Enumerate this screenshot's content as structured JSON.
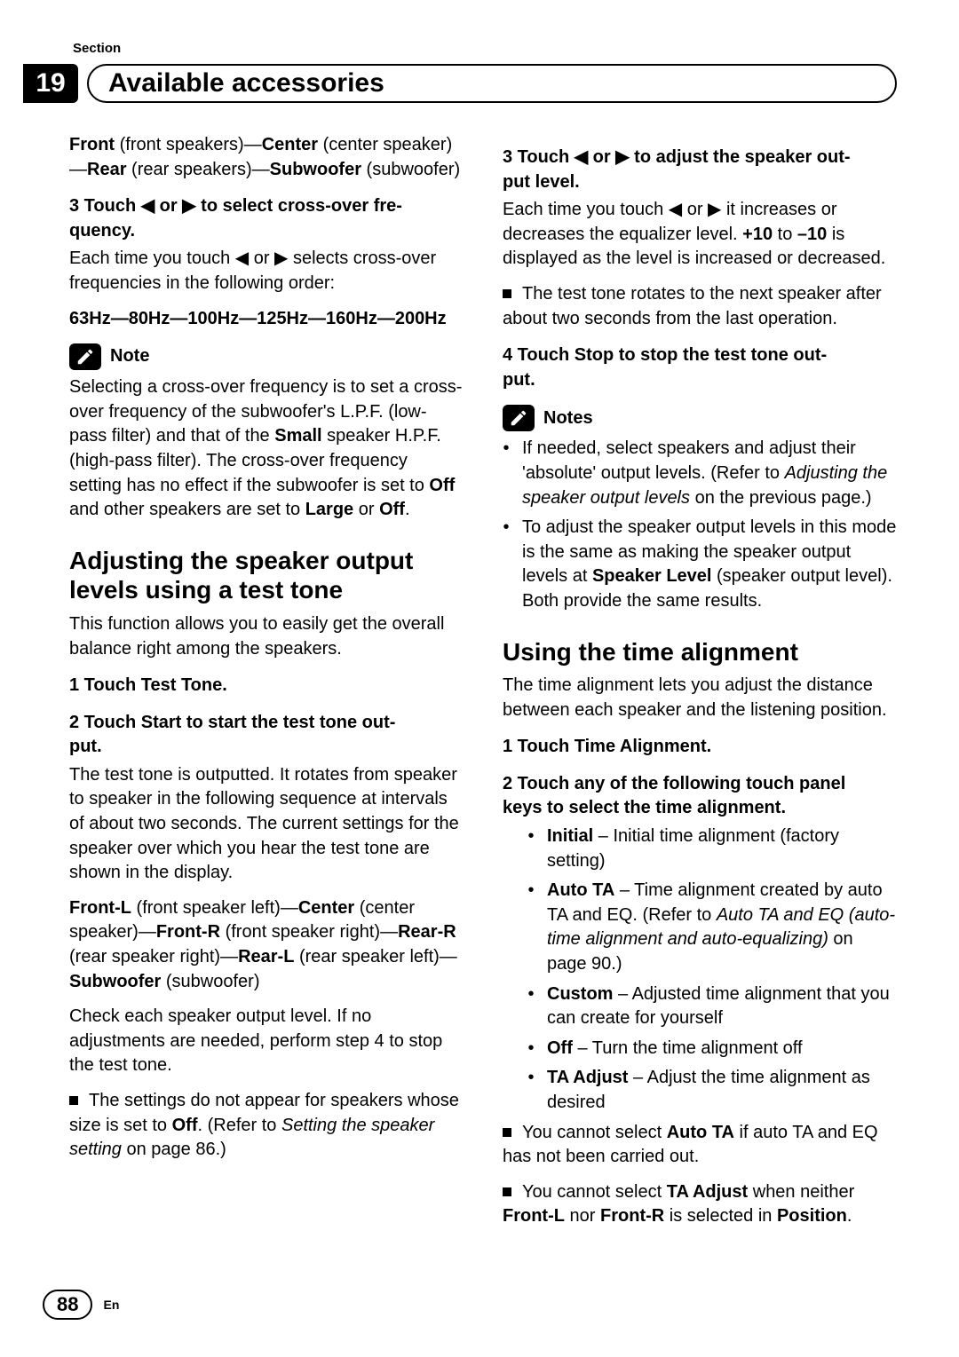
{
  "meta": {
    "section_label": "Section",
    "section_number": "19",
    "section_title": "Available accessories",
    "page_number": "88",
    "lang": "En"
  },
  "left": {
    "speakers_para_parts": [
      {
        "b": "Front",
        "t": " (front speakers)—"
      },
      {
        "b": "Center",
        "t": " (center speaker)—"
      },
      {
        "b": "Rear",
        "t": " (rear speakers)—"
      },
      {
        "b": "Subwoofer",
        "t": " (subwoofer)"
      }
    ],
    "step3_line1": "3   Touch ◀ or ▶ to select cross-over fre-",
    "step3_line2": "quency.",
    "step3_body": "Each time you touch ◀ or ▶ selects cross-over frequencies in the following order:",
    "freq_list": "63Hz—80Hz—100Hz—125Hz—160Hz—200Hz",
    "note_label": "Note",
    "note_body_parts": [
      {
        "t": "Selecting a cross-over frequency is to set a cross-over frequency of the subwoofer's L.P.F. (low-pass filter) and that of the "
      },
      {
        "b": "Small"
      },
      {
        "t": " speaker H.P.F. (high-pass filter). The cross-over frequency setting has no effect if the subwoofer is set to "
      },
      {
        "b": "Off"
      },
      {
        "t": " and other speakers are set to "
      },
      {
        "b": "Large"
      },
      {
        "t": " or "
      },
      {
        "b": "Off"
      },
      {
        "t": "."
      }
    ],
    "h2a": "Adjusting the speaker output levels using a test tone",
    "intro_a": "This function allows you to easily get the overall balance right among the speakers.",
    "a_step1": "1   Touch Test Tone.",
    "a_step2_l1": "2   Touch Start to start the test tone out-",
    "a_step2_l2": "put.",
    "a_step2_body1": "The test tone is outputted. It rotates from speaker to speaker in the following sequence at intervals of about two seconds. The current settings for the speaker over which you hear the test tone are shown in the display.",
    "a_seq_parts": [
      {
        "b": "Front-L",
        "t": " (front speaker left)—"
      },
      {
        "b": "Center",
        "t": " (center speaker)—"
      },
      {
        "b": "Front-R",
        "t": " (front speaker right)—"
      },
      {
        "b": "Rear-R",
        "t": " (rear speaker right)—"
      },
      {
        "b": "Rear-L",
        "t": " (rear speaker left)—"
      },
      {
        "b": "Subwoofer",
        "t": " (subwoofer)"
      }
    ],
    "a_step2_body2": "Check each speaker output level. If no adjustments are needed, perform step 4 to stop the test tone.",
    "a_black_parts": [
      {
        "t": "The settings do not appear for speakers whose size is set to "
      },
      {
        "b": "Off"
      },
      {
        "t": ". (Refer to "
      },
      {
        "i": "Setting the speaker setting"
      },
      {
        "t": " on page 86.)"
      }
    ]
  },
  "right": {
    "step3_l1": "3   Touch ◀ or ▶ to adjust the speaker out-",
    "step3_l2": "put level.",
    "step3_body_parts": [
      {
        "t": "Each time you touch ◀ or ▶ it increases or decreases the equalizer level. "
      },
      {
        "b": "+10"
      },
      {
        "t": " to "
      },
      {
        "b": "–10"
      },
      {
        "t": " is displayed as the level is increased or decreased."
      }
    ],
    "step3_black": "The test tone rotates to the next speaker after about two seconds from the last operation.",
    "step4_l1": "4   Touch Stop to stop the test tone out-",
    "step4_l2": "put.",
    "notes_label": "Notes",
    "notes": [
      [
        {
          "t": "If needed, select speakers and adjust their 'absolute' output levels. (Refer to "
        },
        {
          "i": "Adjusting the speaker output levels"
        },
        {
          "t": " on the previous page.)"
        }
      ],
      [
        {
          "t": "To adjust the speaker output levels in this mode is the same as making the speaker output levels at "
        },
        {
          "b": "Speaker Level"
        },
        {
          "t": "  (speaker output level). Both provide the same results."
        }
      ]
    ],
    "h2b": "Using the time alignment",
    "intro_b": "The time alignment lets you adjust the distance between each speaker and the listening position.",
    "b_step1": "1   Touch Time Alignment.",
    "b_step2_l1": "2   Touch any of the following touch panel",
    "b_step2_l2": "keys to select the time alignment.",
    "b_options": [
      [
        {
          "b": "Initial"
        },
        {
          "t": " – Initial time alignment (factory setting)"
        }
      ],
      [
        {
          "b": "Auto TA"
        },
        {
          "t": " – Time alignment created by auto TA and EQ. (Refer to "
        },
        {
          "i": "Auto TA and EQ (auto-time alignment and auto-equalizing)"
        },
        {
          "t": " on page 90.)"
        }
      ],
      [
        {
          "b": "Custom"
        },
        {
          "t": " – Adjusted time alignment that you can create for yourself"
        }
      ],
      [
        {
          "b": "Off"
        },
        {
          "t": " – Turn the time alignment off"
        }
      ],
      [
        {
          "b": "TA Adjust"
        },
        {
          "t": " – Adjust the time alignment as desired"
        }
      ]
    ],
    "b_black1_parts": [
      {
        "t": "You cannot select "
      },
      {
        "b": "Auto TA"
      },
      {
        "t": " if auto TA and EQ has not been carried out."
      }
    ],
    "b_black2_parts": [
      {
        "t": "You cannot select "
      },
      {
        "b": "TA Adjust"
      },
      {
        "t": " when neither "
      },
      {
        "b": "Front-L"
      },
      {
        "t": " nor "
      },
      {
        "b": "Front-R"
      },
      {
        "t": " is selected in "
      },
      {
        "b": "Position"
      },
      {
        "t": "."
      }
    ]
  }
}
